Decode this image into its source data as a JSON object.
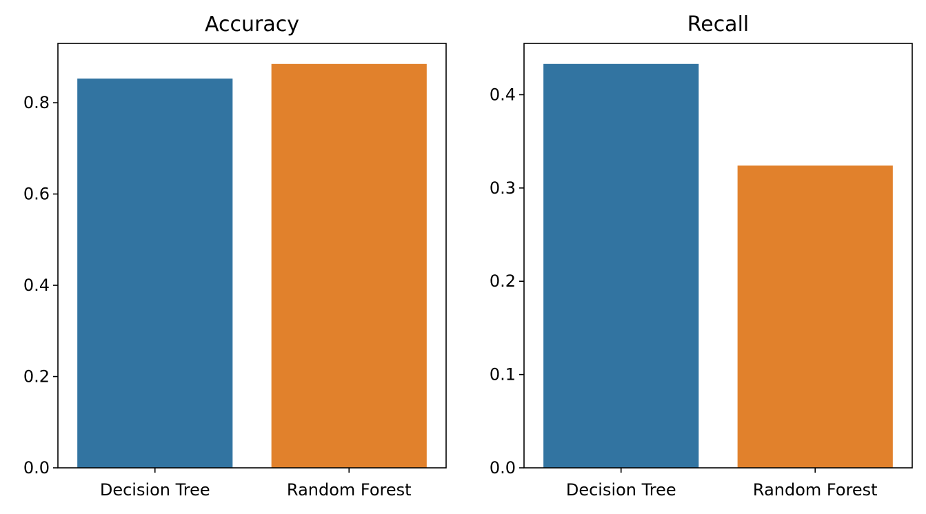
{
  "chart_data": [
    {
      "type": "bar",
      "title": "Accuracy",
      "categories": [
        "Decision Tree",
        "Random Forest"
      ],
      "values": [
        0.853,
        0.885
      ],
      "colors": [
        "#3274a1",
        "#e1812c"
      ],
      "ylim": [
        0,
        0.93
      ],
      "yticks": [
        "0.0",
        "0.2",
        "0.4",
        "0.6",
        "0.8"
      ],
      "ytick_values": [
        0,
        0.2,
        0.4,
        0.6,
        0.8
      ],
      "xlabel": "",
      "ylabel": "",
      "grid": false
    },
    {
      "type": "bar",
      "title": "Recall",
      "categories": [
        "Decision Tree",
        "Random Forest"
      ],
      "values": [
        0.433,
        0.324
      ],
      "colors": [
        "#3274a1",
        "#e1812c"
      ],
      "ylim": [
        0,
        0.455
      ],
      "yticks": [
        "0.0",
        "0.1",
        "0.2",
        "0.3",
        "0.4"
      ],
      "ytick_values": [
        0,
        0.1,
        0.2,
        0.3,
        0.4
      ],
      "xlabel": "",
      "ylabel": "",
      "grid": false
    }
  ]
}
